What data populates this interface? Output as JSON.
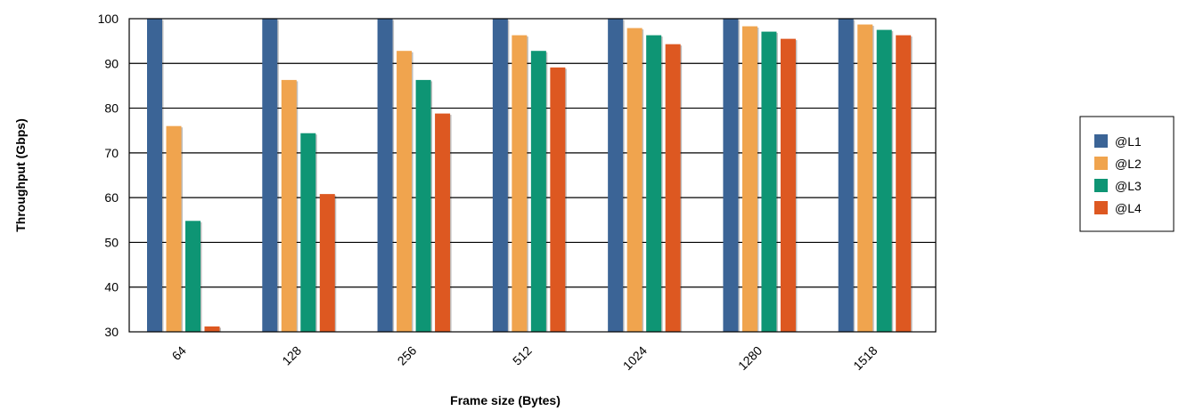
{
  "chart_data": {
    "type": "bar",
    "title": "",
    "xlabel": "Frame size (Bytes)",
    "ylabel": "Throughput (Gbps)",
    "ylim": [
      30,
      100
    ],
    "yticks": [
      30,
      40,
      50,
      60,
      70,
      80,
      90,
      100
    ],
    "categories": [
      "64",
      "128",
      "256",
      "512",
      "1024",
      "1280",
      "1518"
    ],
    "series": [
      {
        "name": "@L1",
        "color": "#3B6496",
        "values": [
          100,
          100,
          100,
          100,
          100,
          100,
          100
        ]
      },
      {
        "name": "@L2",
        "color": "#F0A44E",
        "values": [
          76,
          86.3,
          92.8,
          96.3,
          97.9,
          98.3,
          98.7
        ]
      },
      {
        "name": "@L3",
        "color": "#0E9574",
        "values": [
          54.8,
          74.4,
          86.3,
          92.8,
          96.3,
          97.1,
          97.5
        ]
      },
      {
        "name": "@L4",
        "color": "#DD5821",
        "values": [
          31.2,
          60.8,
          78.8,
          89.1,
          94.3,
          95.5,
          96.3
        ]
      }
    ],
    "grid": true,
    "legend_position": "right"
  }
}
